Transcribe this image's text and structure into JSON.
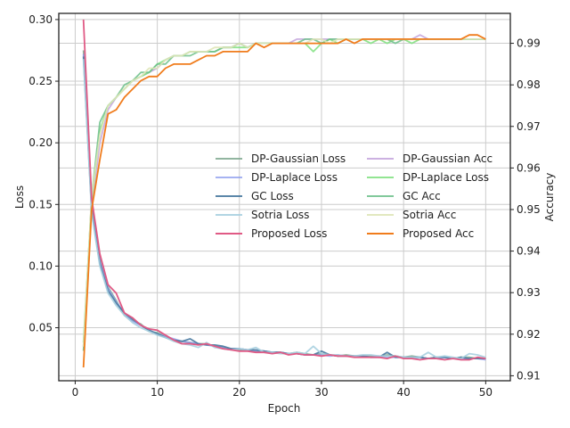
{
  "chart_data": {
    "type": "line",
    "xlabel": "Epoch",
    "ylabel_left": "Loss",
    "ylabel_right": "Accuracy",
    "xlim": [
      -2,
      53
    ],
    "ylim_left": [
      0.007,
      0.305
    ],
    "ylim_right": [
      0.9088,
      0.9972
    ],
    "xticks": [
      0,
      10,
      20,
      30,
      40,
      50
    ],
    "yticks_left": [
      0.05,
      0.1,
      0.15,
      0.2,
      0.25,
      0.3
    ],
    "yticks_right": [
      0.91,
      0.92,
      0.93,
      0.94,
      0.95,
      0.96,
      0.97,
      0.98,
      0.99
    ],
    "grid": true,
    "legend_position": "center-right",
    "x": [
      1,
      2,
      3,
      4,
      5,
      6,
      7,
      8,
      9,
      10,
      11,
      12,
      13,
      14,
      15,
      16,
      17,
      18,
      19,
      20,
      21,
      22,
      23,
      24,
      25,
      26,
      27,
      28,
      29,
      30,
      31,
      32,
      33,
      34,
      35,
      36,
      37,
      38,
      39,
      40,
      41,
      42,
      43,
      44,
      45,
      46,
      47,
      48,
      49,
      50
    ],
    "loss_series": [
      {
        "name": "DP-Gaussian Loss",
        "axis": "left",
        "color": "#7fa88f",
        "opacity": 0.85,
        "values": [
          0.275,
          0.15,
          0.106,
          0.083,
          0.072,
          0.06,
          0.056,
          0.053,
          0.047,
          0.046,
          0.043,
          0.04,
          0.039,
          0.038,
          0.037,
          0.037,
          0.035,
          0.034,
          0.033,
          0.032,
          0.032,
          0.031,
          0.031,
          0.03,
          0.03,
          0.029,
          0.03,
          0.029,
          0.028,
          0.029,
          0.028,
          0.027,
          0.028,
          0.027,
          0.027,
          0.027,
          0.026,
          0.028,
          0.027,
          0.026,
          0.027,
          0.026,
          0.025,
          0.026,
          0.026,
          0.025,
          0.026,
          0.026,
          0.025,
          0.025
        ]
      },
      {
        "name": "DP-Laplace Loss",
        "axis": "left",
        "color": "#8899ee",
        "opacity": 0.75,
        "values": [
          0.272,
          0.148,
          0.104,
          0.082,
          0.071,
          0.062,
          0.055,
          0.052,
          0.048,
          0.045,
          0.043,
          0.041,
          0.039,
          0.038,
          0.037,
          0.036,
          0.035,
          0.034,
          0.033,
          0.033,
          0.032,
          0.031,
          0.031,
          0.03,
          0.03,
          0.029,
          0.029,
          0.028,
          0.028,
          0.028,
          0.027,
          0.028,
          0.027,
          0.027,
          0.027,
          0.026,
          0.027,
          0.026,
          0.026,
          0.026,
          0.025,
          0.026,
          0.025,
          0.025,
          0.026,
          0.025,
          0.025,
          0.025,
          0.025,
          0.024
        ]
      },
      {
        "name": "GC Loss",
        "axis": "left",
        "color": "#4a7aa0",
        "opacity": 0.9,
        "values": [
          0.27,
          0.145,
          0.102,
          0.08,
          0.07,
          0.062,
          0.057,
          0.052,
          0.048,
          0.045,
          0.042,
          0.04,
          0.039,
          0.041,
          0.037,
          0.036,
          0.036,
          0.035,
          0.033,
          0.033,
          0.032,
          0.032,
          0.031,
          0.03,
          0.03,
          0.029,
          0.029,
          0.028,
          0.028,
          0.031,
          0.028,
          0.027,
          0.027,
          0.027,
          0.027,
          0.026,
          0.026,
          0.03,
          0.026,
          0.026,
          0.026,
          0.026,
          0.025,
          0.026,
          0.026,
          0.025,
          0.026,
          0.025,
          0.025,
          0.025
        ]
      },
      {
        "name": "Sotria Loss",
        "axis": "left",
        "color": "#a8d0e0",
        "opacity": 0.9,
        "values": [
          0.268,
          0.143,
          0.1,
          0.078,
          0.068,
          0.06,
          0.054,
          0.05,
          0.047,
          0.044,
          0.042,
          0.039,
          0.037,
          0.036,
          0.034,
          0.038,
          0.034,
          0.033,
          0.032,
          0.033,
          0.032,
          0.034,
          0.03,
          0.03,
          0.029,
          0.029,
          0.03,
          0.029,
          0.035,
          0.029,
          0.028,
          0.028,
          0.027,
          0.027,
          0.028,
          0.028,
          0.027,
          0.027,
          0.027,
          0.026,
          0.026,
          0.026,
          0.03,
          0.026,
          0.027,
          0.026,
          0.025,
          0.029,
          0.028,
          0.026
        ]
      },
      {
        "name": "Proposed Loss",
        "axis": "left",
        "color": "#e05a85",
        "opacity": 1.0,
        "values": [
          0.3,
          0.155,
          0.11,
          0.085,
          0.078,
          0.062,
          0.058,
          0.052,
          0.049,
          0.048,
          0.044,
          0.04,
          0.037,
          0.037,
          0.036,
          0.037,
          0.035,
          0.033,
          0.032,
          0.031,
          0.031,
          0.03,
          0.03,
          0.029,
          0.03,
          0.028,
          0.029,
          0.028,
          0.028,
          0.027,
          0.028,
          0.027,
          0.027,
          0.026,
          0.026,
          0.026,
          0.026,
          0.025,
          0.027,
          0.025,
          0.025,
          0.024,
          0.025,
          0.025,
          0.024,
          0.025,
          0.024,
          0.024,
          0.026,
          0.025
        ]
      }
    ],
    "acc_series": [
      {
        "name": "DP-Gaussian Acc",
        "axis": "right",
        "color": "#c3a3dc",
        "opacity": 0.85,
        "values": [
          0.917,
          0.95,
          0.966,
          0.974,
          0.977,
          0.979,
          0.981,
          0.982,
          0.983,
          0.984,
          0.986,
          0.987,
          0.987,
          0.988,
          0.988,
          0.988,
          0.988,
          0.989,
          0.989,
          0.99,
          0.989,
          0.99,
          0.99,
          0.99,
          0.99,
          0.99,
          0.991,
          0.991,
          0.991,
          0.991,
          0.991,
          0.991,
          0.991,
          0.991,
          0.991,
          0.991,
          0.991,
          0.991,
          0.991,
          0.991,
          0.991,
          0.992,
          0.991,
          0.991,
          0.991,
          0.991,
          0.991,
          0.991,
          0.991,
          0.991
        ]
      },
      {
        "name": "DP-Laplace Loss",
        "axis": "right",
        "color": "#7fe07f",
        "opacity": 0.85,
        "values": [
          0.918,
          0.952,
          0.969,
          0.975,
          0.977,
          0.979,
          0.981,
          0.982,
          0.983,
          0.985,
          0.986,
          0.987,
          0.987,
          0.988,
          0.988,
          0.988,
          0.988,
          0.989,
          0.989,
          0.989,
          0.989,
          0.99,
          0.99,
          0.99,
          0.99,
          0.99,
          0.99,
          0.99,
          0.988,
          0.99,
          0.991,
          0.99,
          0.991,
          0.991,
          0.991,
          0.99,
          0.991,
          0.99,
          0.991,
          0.991,
          0.99,
          0.991,
          0.991,
          0.991,
          0.991,
          0.991,
          0.991,
          0.991,
          0.991,
          0.991
        ]
      },
      {
        "name": "GC Acc",
        "axis": "right",
        "color": "#6cc08a",
        "opacity": 0.85,
        "values": [
          0.916,
          0.953,
          0.971,
          0.975,
          0.977,
          0.98,
          0.981,
          0.983,
          0.983,
          0.985,
          0.985,
          0.987,
          0.987,
          0.987,
          0.988,
          0.988,
          0.988,
          0.989,
          0.989,
          0.99,
          0.989,
          0.99,
          0.99,
          0.99,
          0.99,
          0.99,
          0.99,
          0.991,
          0.991,
          0.99,
          0.991,
          0.991,
          0.991,
          0.991,
          0.991,
          0.991,
          0.991,
          0.991,
          0.99,
          0.991,
          0.991,
          0.991,
          0.991,
          0.991,
          0.991,
          0.991,
          0.991,
          0.991,
          0.991,
          0.991
        ]
      },
      {
        "name": "Sotria Acc",
        "axis": "right",
        "color": "#dfe6b8",
        "opacity": 0.9,
        "values": [
          0.917,
          0.953,
          0.968,
          0.975,
          0.977,
          0.979,
          0.981,
          0.982,
          0.984,
          0.984,
          0.986,
          0.987,
          0.987,
          0.988,
          0.988,
          0.988,
          0.989,
          0.989,
          0.989,
          0.99,
          0.989,
          0.99,
          0.99,
          0.99,
          0.99,
          0.99,
          0.99,
          0.99,
          0.991,
          0.991,
          0.99,
          0.991,
          0.991,
          0.991,
          0.991,
          0.991,
          0.991,
          0.991,
          0.991,
          0.991,
          0.991,
          0.991,
          0.991,
          0.991,
          0.991,
          0.991,
          0.991,
          0.991,
          0.991,
          0.991
        ]
      },
      {
        "name": "Proposed Acc",
        "axis": "right",
        "color": "#f07c1c",
        "opacity": 1.0,
        "values": [
          0.912,
          0.95,
          0.962,
          0.973,
          0.974,
          0.977,
          0.979,
          0.981,
          0.982,
          0.982,
          0.984,
          0.985,
          0.985,
          0.985,
          0.986,
          0.987,
          0.987,
          0.988,
          0.988,
          0.988,
          0.988,
          0.99,
          0.989,
          0.99,
          0.99,
          0.99,
          0.99,
          0.99,
          0.99,
          0.99,
          0.99,
          0.99,
          0.991,
          0.99,
          0.991,
          0.991,
          0.991,
          0.991,
          0.991,
          0.991,
          0.991,
          0.991,
          0.991,
          0.991,
          0.991,
          0.991,
          0.991,
          0.992,
          0.992,
          0.991
        ]
      }
    ]
  }
}
